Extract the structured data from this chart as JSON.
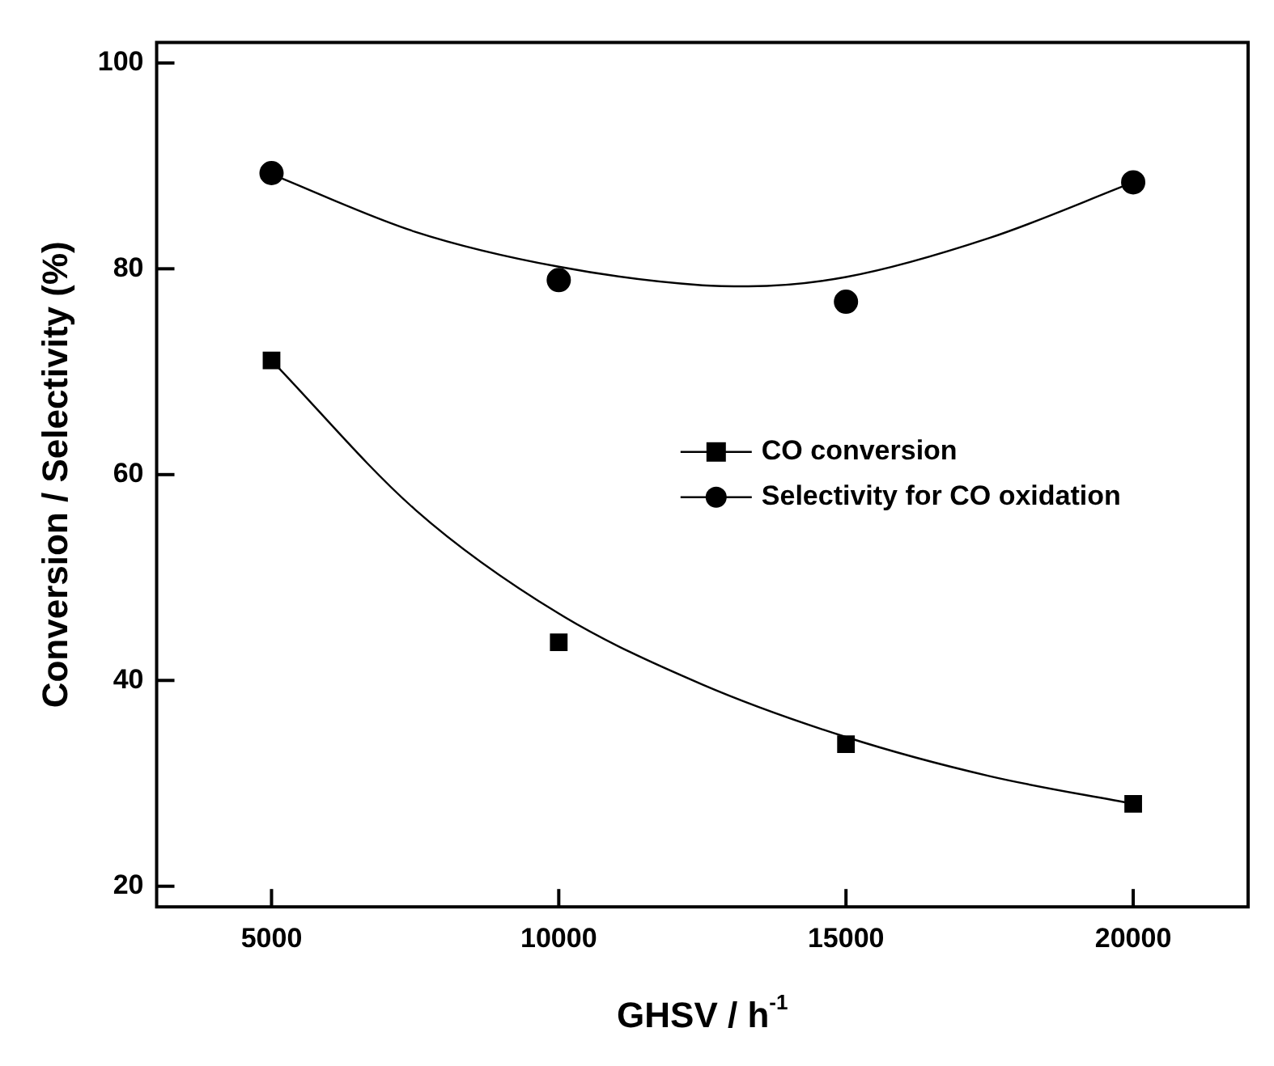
{
  "chart_data": {
    "type": "scatter",
    "xlabel": "GHSV / h$^{-1}$",
    "ylabel": "Conversion / Selectivity (%)",
    "xlim": [
      3000,
      22000
    ],
    "xticks": [
      5000,
      10000,
      15000,
      20000
    ],
    "ylim": [
      18,
      102
    ],
    "yticks": [
      20,
      40,
      60,
      80,
      100
    ],
    "legend": "right",
    "grid": false,
    "series": [
      {
        "name": "CO conversion",
        "marker": "square",
        "color": "#000000",
        "x": [
          5000,
          10000,
          15000,
          20000
        ],
        "values": [
          71.1,
          43.7,
          33.8,
          28.0
        ]
      },
      {
        "name": "Selectivity for CO oxidation",
        "marker": "circle",
        "color": "#000000",
        "x": [
          5000,
          10000,
          15000,
          20000
        ],
        "values": [
          89.3,
          78.9,
          76.8,
          88.4
        ]
      },
      {
        "type": "line",
        "marker": "none",
        "line_style": "solid",
        "color": "#000000",
        "x": [
          5000,
          7500,
          10000,
          12500,
          15000,
          17500,
          20000
        ],
        "values": [
          71.1,
          56.6,
          46.5,
          39.6,
          34.5,
          30.7,
          28.0
        ]
      },
      {
        "type": "line",
        "marker": "none",
        "line_style": "solid",
        "color": "#000000",
        "x": [
          5000,
          7500,
          10000,
          12500,
          13300,
          15000,
          17500,
          20000
        ],
        "values": [
          89.2,
          83.6,
          80.2,
          78.4,
          78.3,
          79.2,
          83.0,
          88.4
        ]
      }
    ]
  }
}
